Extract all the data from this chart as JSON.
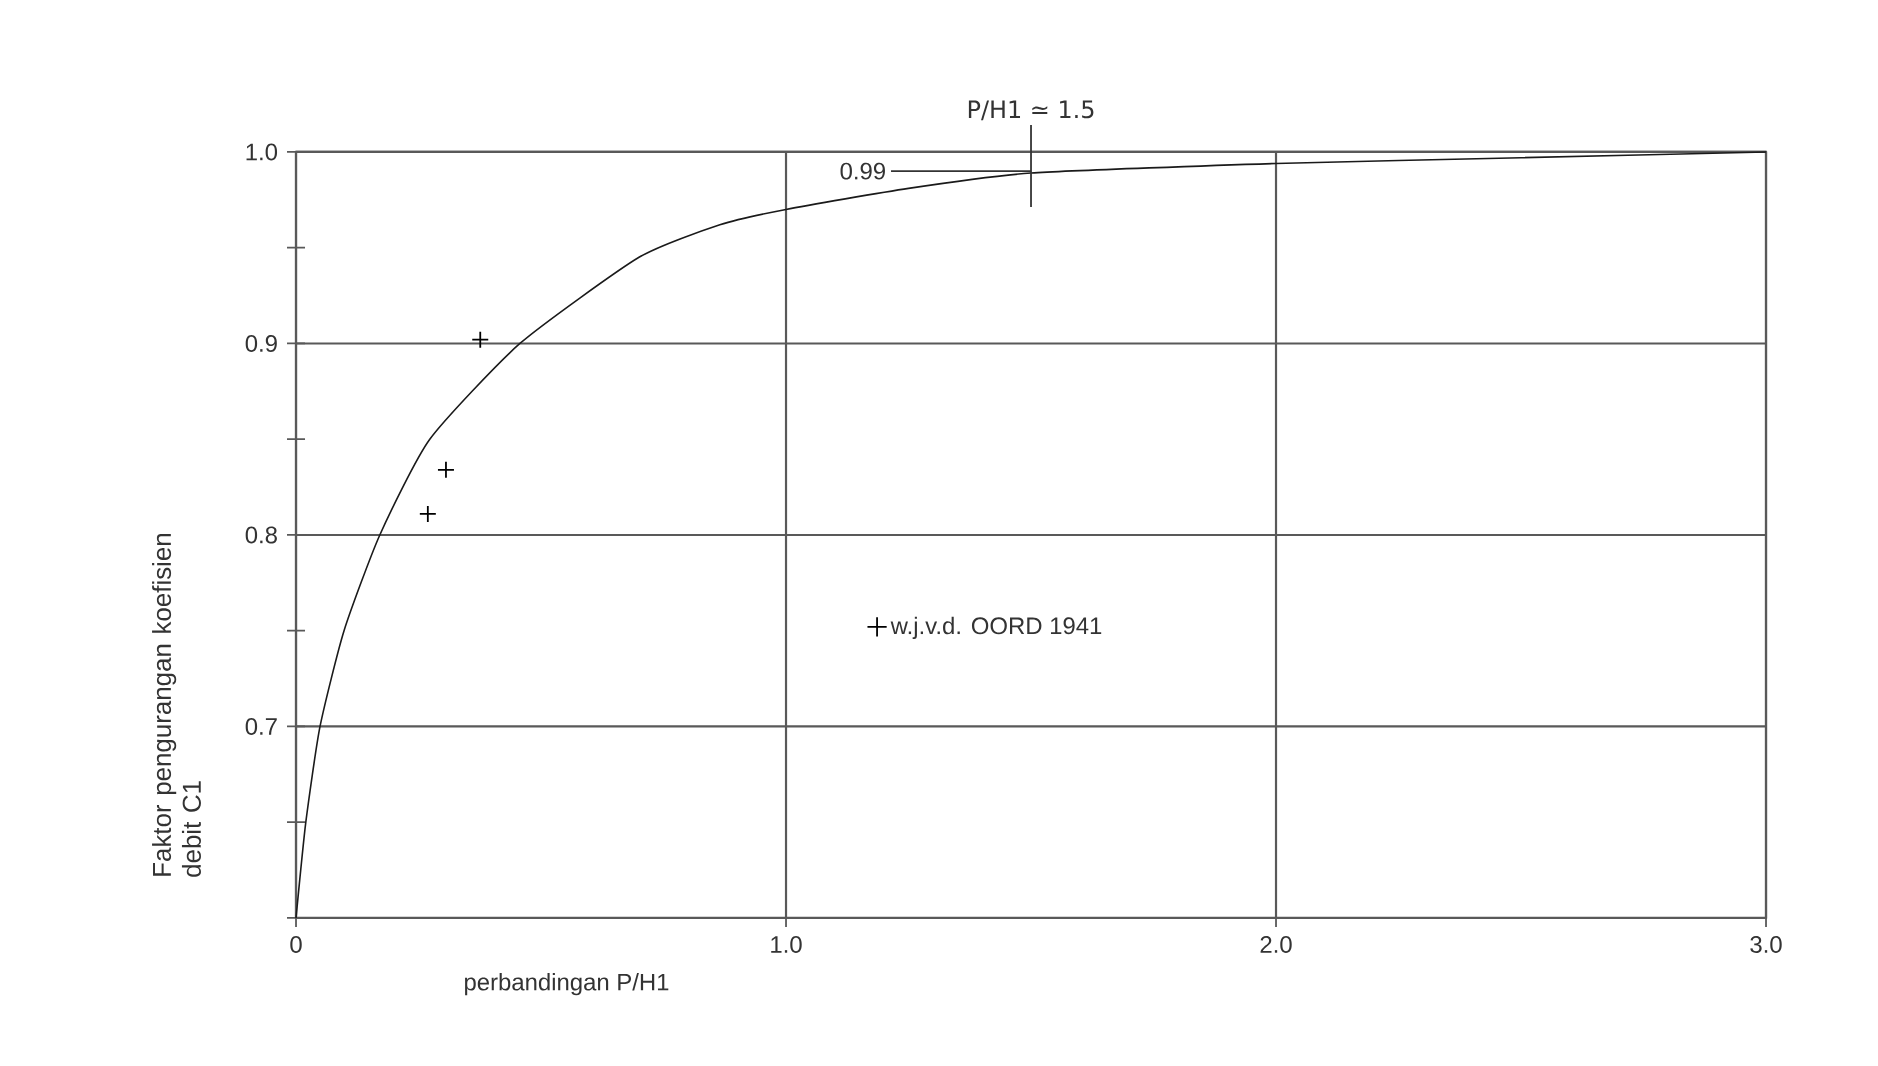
{
  "chart_data": {
    "type": "line",
    "xlabel": "perbandingan P/H1",
    "ylabel": "Faktor pengurangan koefisien debit C1",
    "xlim": [
      0,
      3
    ],
    "ylim": [
      0.6,
      1.0
    ],
    "xticks": [
      0,
      {
        "value": 1,
        "label": "1.0"
      },
      {
        "value": 2,
        "label": "2.0"
      },
      {
        "value": 3,
        "label": "3.0"
      }
    ],
    "yticks": [
      {
        "value": 0.6,
        "label": null
      },
      {
        "value": 0.65,
        "label": null
      },
      0.7,
      {
        "value": 0.75,
        "label": null
      },
      0.8,
      {
        "value": 0.85,
        "label": null
      },
      0.9,
      {
        "value": 0.95,
        "label": null
      },
      {
        "value": 1,
        "label": "1.0"
      }
    ],
    "grid": true,
    "legend": "center",
    "annotations": [
      {
        "text": "P/H1 ≃ 1.5",
        "x": 1.5,
        "y": 0.99
      },
      {
        "text": "0.99",
        "x": 1.5,
        "y": 0.99
      }
    ],
    "series": [
      {
        "marker": "none",
        "color": "#1a1a1a",
        "x": [
          0,
          0.02,
          0.049,
          0.098,
          0.171,
          0.273,
          0.457,
          0.7,
          0.865,
          1.0,
          1.25,
          1.5,
          2.0,
          2.5,
          3.0
        ],
        "values": [
          0.6,
          0.65,
          0.7,
          0.75,
          0.8,
          0.85,
          0.9,
          0.945,
          0.962,
          0.97,
          0.981,
          0.989,
          0.994,
          0.997,
          1.0
        ]
      },
      {
        "type": "scatter",
        "name": "w.j.v.d. OORD 1941",
        "marker": "cross",
        "color": "#000000",
        "x": [
          0.376,
          0.306,
          0.269
        ],
        "values": [
          0.902,
          0.834,
          0.811
        ]
      }
    ]
  }
}
